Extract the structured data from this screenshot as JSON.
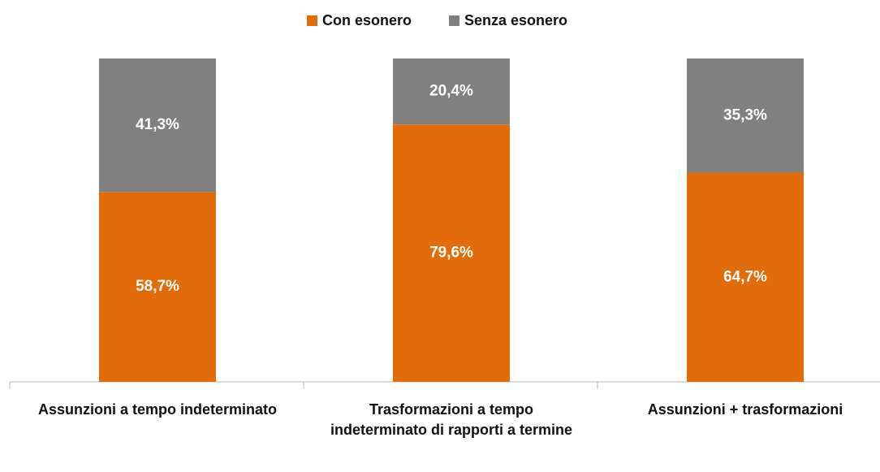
{
  "chart_data": {
    "type": "stacked_bar",
    "categories": [
      "Assunzioni a tempo indeterminato",
      "Trasformazioni a tempo indeterminato di rapporti a termine",
      "Assunzioni + trasformazioni"
    ],
    "series": [
      {
        "name": "Con esonero",
        "color": "#e36c0a",
        "values": [
          58.7,
          79.6,
          64.7
        ],
        "value_labels": [
          "58,7%",
          "79,6%",
          "64,7%"
        ]
      },
      {
        "name": "Senza esonero",
        "color": "#808080",
        "values": [
          41.3,
          20.4,
          35.3
        ],
        "value_labels": [
          "41,3%",
          "20,4%",
          "35,3%"
        ]
      }
    ],
    "ylim": [
      0,
      100
    ],
    "legend": "top"
  }
}
